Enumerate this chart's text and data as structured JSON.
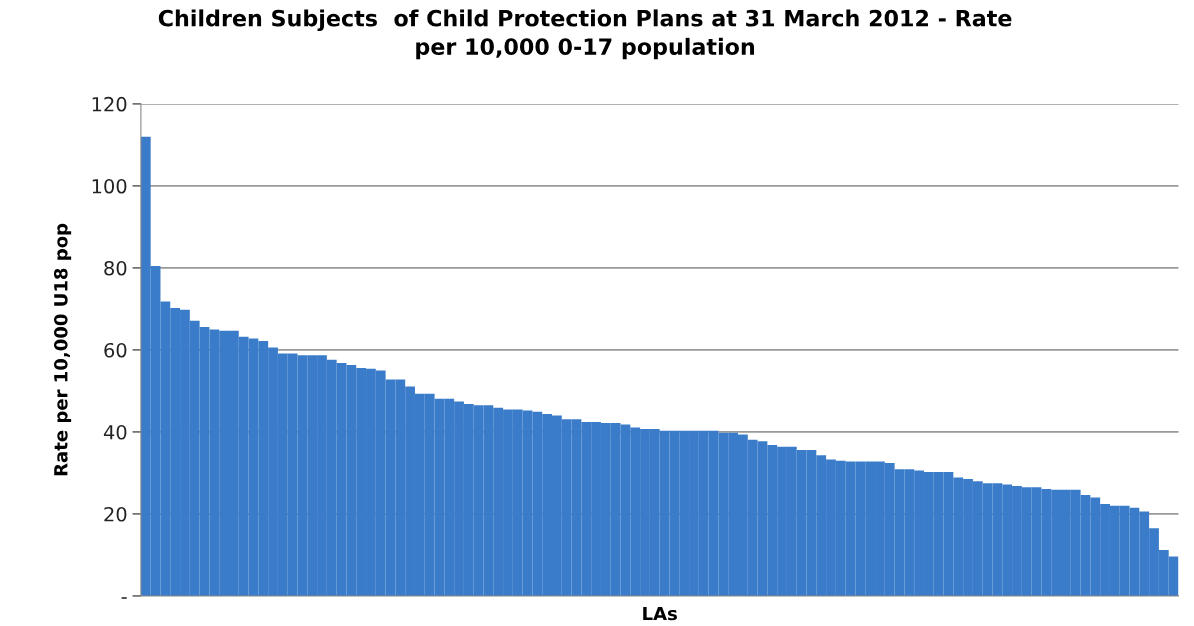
{
  "chart_data": {
    "type": "bar",
    "title": "Children Subjects  of Child Protection Plans at 31 March 2012 - Rate\nper 10,000 0-17 population",
    "xlabel": "LAs",
    "ylabel": "Rate per 10,000 U18 pop",
    "categories": [
      null,
      null,
      null,
      null,
      null,
      null,
      null,
      null,
      null,
      null,
      null,
      null,
      null,
      null,
      null,
      null,
      null,
      null,
      null,
      null,
      null,
      null,
      null,
      null,
      null,
      null,
      null,
      null,
      null,
      null,
      null,
      null,
      null,
      null,
      null,
      null,
      null,
      null,
      null,
      null,
      null,
      null,
      null,
      null,
      null,
      null,
      null,
      null,
      null,
      null,
      null,
      null,
      null,
      null,
      null,
      null,
      null,
      null,
      null,
      null,
      null,
      null,
      null,
      null,
      null,
      null,
      null,
      null,
      null,
      null,
      null,
      null,
      null,
      null,
      null,
      null,
      null,
      null,
      null,
      null,
      null,
      null,
      null,
      null,
      null,
      null,
      null,
      null,
      null,
      null,
      null,
      null,
      null,
      null,
      null,
      null,
      null,
      null,
      null,
      null,
      null,
      null,
      null,
      null,
      null,
      null
    ],
    "values": [
      112,
      80.5,
      71.8,
      70.2,
      69.8,
      67.1,
      65.6,
      65.0,
      64.7,
      64.7,
      63.2,
      62.8,
      62.2,
      60.6,
      59.1,
      59.1,
      58.7,
      58.7,
      58.7,
      57.6,
      56.8,
      56.3,
      55.6,
      55.4,
      55.0,
      52.8,
      52.8,
      51.1,
      49.3,
      49.3,
      48.1,
      48.1,
      47.4,
      46.8,
      46.5,
      46.5,
      45.9,
      45.5,
      45.5,
      45.2,
      44.9,
      44.4,
      44.0,
      43.1,
      43.1,
      42.4,
      42.4,
      42.2,
      42.2,
      41.8,
      41.1,
      40.7,
      40.7,
      40.3,
      40.3,
      40.3,
      40.3,
      40.3,
      40.3,
      39.8,
      39.8,
      39.4,
      38.1,
      37.7,
      36.8,
      36.4,
      36.4,
      35.6,
      35.6,
      34.3,
      33.3,
      33.0,
      32.8,
      32.8,
      32.8,
      32.8,
      32.4,
      30.9,
      30.9,
      30.6,
      30.2,
      30.2,
      30.2,
      28.9,
      28.5,
      28.0,
      27.5,
      27.5,
      27.2,
      26.8,
      26.5,
      26.5,
      26.1,
      25.9,
      25.9,
      25.9,
      24.6,
      24.0,
      22.4,
      22.0,
      22.0,
      21.5,
      20.6,
      16.5,
      11.2,
      9.6
    ],
    "color": "#3a7cc9",
    "ylim": [
      0,
      120
    ],
    "yticks": [
      {
        "value": 0,
        "label": "-"
      },
      20,
      40,
      60,
      80,
      100,
      120
    ],
    "grid": "y"
  }
}
